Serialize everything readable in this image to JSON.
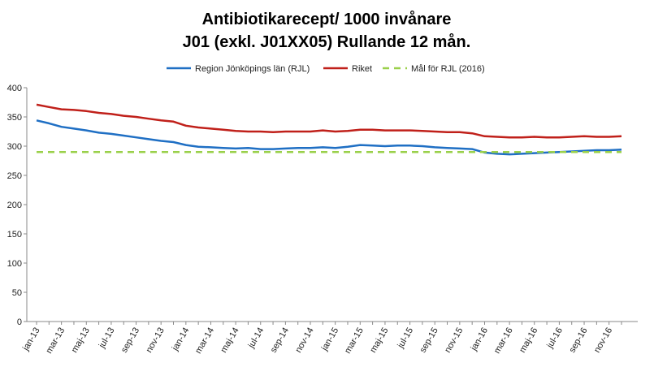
{
  "chart_data": {
    "type": "line",
    "title_lines": [
      "Antibiotikarecept/ 1000 invånare",
      "J01 (exkl. J01XX05) Rullande 12 mån."
    ],
    "xlabel": "",
    "ylabel": "",
    "ylim": [
      0,
      400
    ],
    "yticks": [
      0,
      50,
      100,
      150,
      200,
      250,
      300,
      350,
      400
    ],
    "grid": false,
    "legend_position": "top",
    "x": [
      "jan-13",
      "feb-13",
      "mar-13",
      "apr-13",
      "maj-13",
      "jun-13",
      "jul-13",
      "aug-13",
      "sep-13",
      "okt-13",
      "nov-13",
      "dec-13",
      "jan-14",
      "feb-14",
      "mar-14",
      "apr-14",
      "maj-14",
      "jun-14",
      "jul-14",
      "aug-14",
      "sep-14",
      "okt-14",
      "nov-14",
      "dec-14",
      "jan-15",
      "feb-15",
      "mar-15",
      "apr-15",
      "maj-15",
      "jun-15",
      "jul-15",
      "aug-15",
      "sep-15",
      "okt-15",
      "nov-15",
      "dec-15",
      "jan-16",
      "feb-16",
      "mar-16",
      "apr-16",
      "maj-16",
      "jun-16",
      "jul-16",
      "aug-16",
      "sep-16",
      "okt-16",
      "nov-16",
      "dec-16"
    ],
    "x_tick_labels": [
      "jan-13",
      "mar-13",
      "maj-13",
      "jul-13",
      "sep-13",
      "nov-13",
      "jan-14",
      "mar-14",
      "maj-14",
      "jul-14",
      "sep-14",
      "nov-14",
      "jan-15",
      "mar-15",
      "maj-15",
      "jul-15",
      "sep-15",
      "nov-15",
      "jan-16",
      "mar-16",
      "maj-16",
      "jul-16",
      "sep-16",
      "nov-16"
    ],
    "series": [
      {
        "name": "Region Jönköpings län (RJL)",
        "color": "#1f6fc4",
        "style": "solid",
        "values": [
          344,
          339,
          333,
          330,
          327,
          323,
          321,
          318,
          315,
          312,
          309,
          307,
          302,
          299,
          298,
          297,
          296,
          297,
          295,
          295,
          296,
          297,
          297,
          298,
          297,
          299,
          302,
          301,
          300,
          301,
          301,
          300,
          298,
          297,
          296,
          295,
          289,
          287,
          286,
          287,
          288,
          289,
          290,
          291,
          292,
          293,
          293,
          294
        ]
      },
      {
        "name": "Riket",
        "color": "#c0201a",
        "style": "solid",
        "values": [
          371,
          367,
          363,
          362,
          360,
          357,
          355,
          352,
          350,
          347,
          344,
          342,
          335,
          332,
          330,
          328,
          326,
          325,
          325,
          324,
          325,
          325,
          325,
          327,
          325,
          326,
          328,
          328,
          327,
          327,
          327,
          326,
          325,
          324,
          324,
          322,
          317,
          316,
          315,
          315,
          316,
          315,
          315,
          316,
          317,
          316,
          316,
          317
        ]
      },
      {
        "name": "Mål för RJL (2016)",
        "color": "#9ad04a",
        "style": "dashed",
        "values": [
          290,
          290,
          290,
          290,
          290,
          290,
          290,
          290,
          290,
          290,
          290,
          290,
          290,
          290,
          290,
          290,
          290,
          290,
          290,
          290,
          290,
          290,
          290,
          290,
          290,
          290,
          290,
          290,
          290,
          290,
          290,
          290,
          290,
          290,
          290,
          290,
          290,
          290,
          290,
          290,
          290,
          290,
          290,
          290,
          290,
          290,
          290,
          290
        ]
      }
    ]
  }
}
